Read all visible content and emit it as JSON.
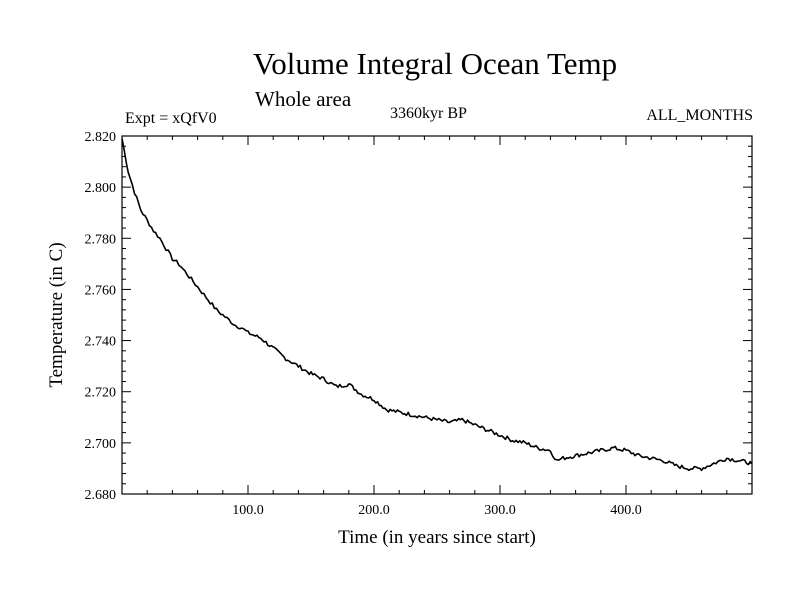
{
  "header": {
    "title": "Volume Integral Ocean Temp",
    "subtitle": "Whole area",
    "experiment": "Expt = xQfV0",
    "period": "3360kyr BP",
    "months": "ALL_MONTHS"
  },
  "chart_data": {
    "type": "line",
    "title": "Volume Integral Ocean Temp",
    "subtitle": "Whole area",
    "xlabel": "Time (in years since start)",
    "ylabel": "Temperature (in C)",
    "xlim": [
      0,
      500
    ],
    "ylim": [
      2.68,
      2.82
    ],
    "x_ticks": [
      100,
      200,
      300,
      400
    ],
    "x_tick_labels": [
      "100.0",
      "200.0",
      "300.0",
      "400.0"
    ],
    "y_ticks": [
      2.68,
      2.7,
      2.72,
      2.74,
      2.76,
      2.78,
      2.8,
      2.82
    ],
    "y_tick_labels": [
      "2.680",
      "2.700",
      "2.720",
      "2.740",
      "2.760",
      "2.780",
      "2.800",
      "2.820"
    ],
    "grid": false,
    "series": [
      {
        "name": "Volume integral ocean temperature",
        "color": "#000000",
        "x": [
          0,
          5,
          10,
          15,
          20,
          25,
          30,
          35,
          40,
          45,
          50,
          55,
          60,
          65,
          70,
          75,
          80,
          85,
          90,
          95,
          100,
          110,
          120,
          130,
          140,
          150,
          160,
          170,
          180,
          190,
          200,
          210,
          220,
          230,
          240,
          250,
          260,
          270,
          280,
          290,
          300,
          310,
          320,
          330,
          340,
          345,
          350,
          360,
          370,
          380,
          390,
          400,
          410,
          420,
          430,
          440,
          450,
          460,
          470,
          480,
          490,
          500
        ],
        "y": [
          2.819,
          2.806,
          2.798,
          2.791,
          2.787,
          2.783,
          2.78,
          2.776,
          2.772,
          2.77,
          2.767,
          2.764,
          2.761,
          2.758,
          2.755,
          2.752,
          2.75,
          2.748,
          2.746,
          2.745,
          2.743,
          2.741,
          2.737,
          2.733,
          2.73,
          2.727,
          2.725,
          2.722,
          2.723,
          2.719,
          2.717,
          2.713,
          2.712,
          2.711,
          2.71,
          2.709,
          2.708,
          2.709,
          2.707,
          2.705,
          2.703,
          2.701,
          2.7,
          2.698,
          2.697,
          2.693,
          2.694,
          2.695,
          2.696,
          2.697,
          2.698,
          2.697,
          2.695,
          2.694,
          2.693,
          2.691,
          2.69,
          2.69,
          2.692,
          2.694,
          2.693,
          2.692
        ]
      }
    ]
  }
}
